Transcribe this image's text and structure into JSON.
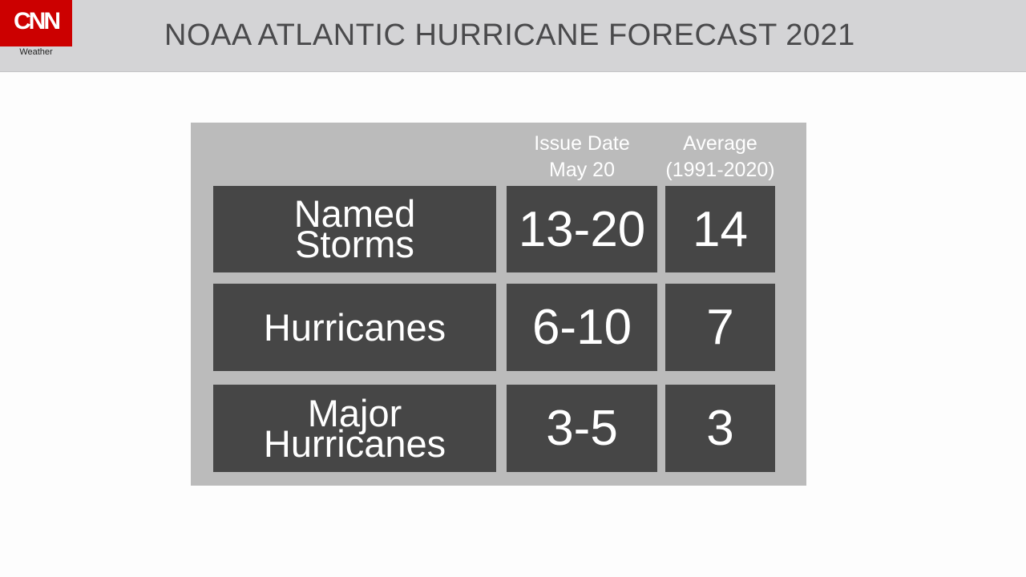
{
  "header": {
    "logo_text": "CNN",
    "logo_sub": "Weather",
    "title": "NOAA ATLANTIC HURRICANE FORECAST 2021"
  },
  "table": {
    "columns": {
      "forecast": {
        "line1": "Issue Date",
        "line2": "May 20"
      },
      "average": {
        "line1": "Average",
        "line2": "(1991-2020)"
      }
    },
    "rows": [
      {
        "label": "Named\nStorms",
        "forecast": "13-20",
        "average": "14"
      },
      {
        "label": "Hurricanes",
        "forecast": "6-10",
        "average": "7"
      },
      {
        "label": "Major\nHurricanes",
        "forecast": "3-5",
        "average": "3"
      }
    ]
  },
  "colors": {
    "brand_red": "#cc0000",
    "header_bg": "#d4d4d6",
    "panel_bg": "#bbbbbb",
    "cell_bg": "#464646",
    "text_light": "#ffffff",
    "title_text": "#4a4a4c"
  }
}
